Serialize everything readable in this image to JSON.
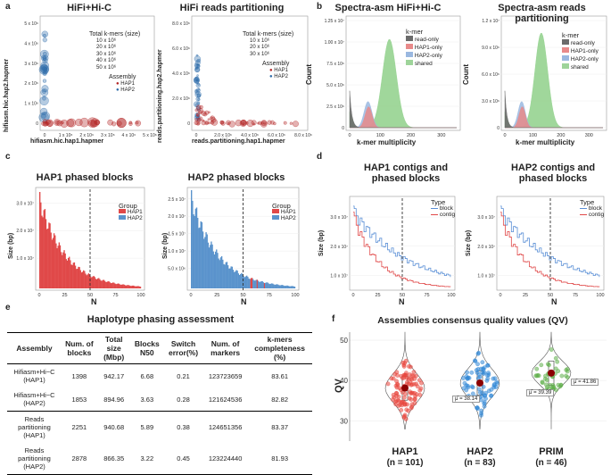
{
  "panels": {
    "a": {
      "label": "a",
      "title1": "HiFi+Hi-C",
      "title2": "HiFi reads partitioning",
      "x1": "hifiasm.hic.hap1.hapmer",
      "y1": "hifiasm.hic.hap2.hapmer",
      "x2": "reads.partitioning.hap1.hapmer",
      "y2": "reads.partitioning.hap2.hapmer",
      "size_title": "Total k-mers (size)",
      "sizes": [
        "10 x 10⁶",
        "20 x 10⁶",
        "30 x 10⁶",
        "40 x 10⁶",
        "50 x 10⁶"
      ],
      "assembly_title": "Assembly",
      "hap1": "HAP1",
      "hap2": "HAP2",
      "yt1": [
        "0",
        "1 x 10⁶",
        "2 x 10⁶",
        "3 x 10⁶",
        "4 x 10⁶",
        "5 x 10⁶"
      ],
      "xt1": [
        "0",
        "1 x 10⁶",
        "2 x 10⁶",
        "3 x 10⁶",
        "4 x 10⁶",
        "5 x 10⁶"
      ],
      "yt2": [
        "0",
        "2.0 x 10⁶",
        "4.0 x 10⁶",
        "6.0 x 10⁶",
        "8.0 x 10⁶"
      ],
      "xt2": [
        "0",
        "2.0 x 10⁶",
        "4.0 x 10⁶",
        "6.0 x 10⁶",
        "8.0 x 10⁶"
      ]
    },
    "b": {
      "label": "b",
      "title1": "Spectra-asm HiFi+Hi-C",
      "title2": "Spectra-asm reads partitioning",
      "xlabel": "k-mer multiplicity",
      "ylabel": "Count",
      "legend_title": "k-mer",
      "legend": [
        "read-only",
        "HAP1-only",
        "HAP2-only",
        "shared"
      ],
      "yt1": [
        "0",
        "2.5 x 10⁶",
        "5.0 x 10⁶",
        "7.5 x 10⁶",
        "1.00 x 10⁷",
        "1.25 x 10⁷"
      ],
      "yt2": [
        "0",
        "3.0 x 10⁶",
        "6.0 x 10⁶",
        "9.0 x 10⁶",
        "1.2 x 10⁷"
      ],
      "xt": [
        "0",
        "100",
        "200",
        "300"
      ]
    },
    "c": {
      "label": "c",
      "title1": "HAP1 phased blocks",
      "title2": "HAP2 phased blocks",
      "xlabel": "N",
      "ylabel": "Size (bp)",
      "group_title": "Group",
      "g1": "HAP1",
      "g2": "HAP2",
      "yt1": [
        "1.0 x 10⁷",
        "2.0 x 10⁷",
        "3.0 x 10⁷"
      ],
      "yt2": [
        "5.0 x 10⁶",
        "1.0 x 10⁷",
        "1.5 x 10⁷",
        "2.0 x 10⁷",
        "2.5 x 10⁷"
      ],
      "xt": [
        "0",
        "25",
        "50",
        "75",
        "100"
      ]
    },
    "d": {
      "label": "d",
      "title1": "HAP1 contigs and phased blocks",
      "title2": "HAP2 contigs and phased blocks",
      "xlabel": "N",
      "ylabel": "Size (bp)",
      "type_title": "Type",
      "t1": "block",
      "t2": "contig",
      "yt1": [
        "1.0 x 10⁷",
        "2.0 x 10⁷",
        "3.0 x 10⁷"
      ],
      "yt2": [
        "1.0 x 10⁷",
        "2.0 x 10⁷",
        "3.0 x 10⁷"
      ],
      "xt": [
        "0",
        "25",
        "50",
        "75",
        "100"
      ]
    },
    "e": {
      "label": "e",
      "title": "Haplotype phasing assessment",
      "headers": [
        "Assembly",
        "Num. of blocks",
        "Total size (Mbp)",
        "Blocks N50",
        "Switch error(%)",
        "Num. of markers",
        "k-mers completeness (%)"
      ],
      "rows": [
        [
          "Hifiasm+Hi−C (HAP1)",
          "1398",
          "942.17",
          "6.68",
          "0.21",
          "123723659",
          "83.61"
        ],
        [
          "Hifiasm+Hi−C (HAP2)",
          "1853",
          "894.96",
          "3.63",
          "0.28",
          "121624536",
          "82.82"
        ],
        [
          "Reads partitioning (HAP1)",
          "2251",
          "940.68",
          "5.89",
          "0.38",
          "124651356",
          "83.37"
        ],
        [
          "Reads partitioning (HAP2)",
          "2878",
          "866.35",
          "3.22",
          "0.45",
          "123224440",
          "81.93"
        ]
      ]
    },
    "f": {
      "label": "f",
      "title": "Assemblies consensus quality values (QV)",
      "ylabel": "QV",
      "yt": [
        "30",
        "40",
        "50"
      ],
      "groups": [
        {
          "name": "HAP1",
          "n": "(n = 101)",
          "mean": "μ̂ = 38.14",
          "color": "#e8453c"
        },
        {
          "name": "HAP2",
          "n": "(n = 83)",
          "mean": "μ̂ = 39.39",
          "color": "#2f86d6"
        },
        {
          "name": "PRIM",
          "n": "(n = 46)",
          "mean": "μ̂ = 41.86",
          "color": "#5fae4a"
        }
      ]
    }
  },
  "chart_data": [
    {
      "type": "scatter",
      "title": "HiFi+Hi-C",
      "xlabel": "hifiasm.hic.hap1.hapmer",
      "ylabel": "hifiasm.hic.hap2.hapmer",
      "series": [
        {
          "name": "HAP1"
        },
        {
          "name": "HAP2"
        }
      ]
    },
    {
      "type": "scatter",
      "title": "HiFi reads partitioning",
      "xlabel": "reads.partitioning.hap1.hapmer",
      "ylabel": "reads.partitioning.hap2.hapmer",
      "series": [
        {
          "name": "HAP1"
        },
        {
          "name": "HAP2"
        }
      ]
    },
    {
      "type": "area",
      "title": "Spectra-asm HiFi+Hi-C",
      "xlabel": "k-mer multiplicity",
      "ylabel": "Count",
      "series": [
        {
          "name": "read-only"
        },
        {
          "name": "HAP1-only"
        },
        {
          "name": "HAP2-only"
        },
        {
          "name": "shared"
        }
      ],
      "xlim": [
        0,
        350
      ],
      "ylim": [
        0,
        13500000
      ]
    },
    {
      "type": "area",
      "title": "Spectra-asm reads partitioning",
      "xlabel": "k-mer multiplicity",
      "ylabel": "Count",
      "series": [
        {
          "name": "read-only"
        },
        {
          "name": "HAP1-only"
        },
        {
          "name": "HAP2-only"
        },
        {
          "name": "shared"
        }
      ],
      "xlim": [
        0,
        350
      ],
      "ylim": [
        0,
        13500000
      ]
    },
    {
      "type": "bar",
      "title": "HAP1 phased blocks",
      "xlabel": "N",
      "ylabel": "Size (bp)",
      "xlim": [
        0,
        100
      ],
      "ylim": [
        0,
        33000000
      ]
    },
    {
      "type": "bar",
      "title": "HAP2 phased blocks",
      "xlabel": "N",
      "ylabel": "Size (bp)",
      "xlim": [
        0,
        100
      ],
      "ylim": [
        0,
        27000000
      ]
    },
    {
      "type": "line",
      "title": "HAP1 contigs and phased blocks",
      "xlabel": "N",
      "ylabel": "Size (bp)",
      "series": [
        {
          "name": "block"
        },
        {
          "name": "contig"
        }
      ],
      "xlim": [
        0,
        100
      ],
      "ylim": [
        0,
        36000000
      ]
    },
    {
      "type": "line",
      "title": "HAP2 contigs and phased blocks",
      "xlabel": "N",
      "ylabel": "Size (bp)",
      "series": [
        {
          "name": "block"
        },
        {
          "name": "contig"
        }
      ],
      "xlim": [
        0,
        100
      ],
      "ylim": [
        0,
        36000000
      ]
    },
    {
      "type": "scatter",
      "title": "Assemblies consensus quality values (QV)",
      "ylabel": "QV",
      "categories": [
        "HAP1",
        "HAP2",
        "PRIM"
      ],
      "means": [
        38.14,
        39.39,
        41.86
      ],
      "n": [
        101,
        83,
        46
      ],
      "ylim": [
        25,
        52
      ]
    }
  ]
}
